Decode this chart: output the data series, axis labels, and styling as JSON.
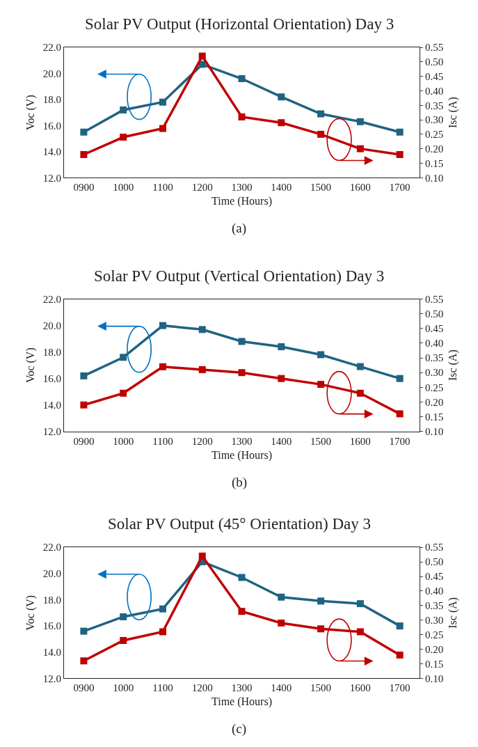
{
  "chart_data": [
    {
      "type": "line",
      "title": "Solar PV Output (Horizontal Orientation) Day 3",
      "xlabel": "Time (Hours)",
      "ylabel": "Voc (V)",
      "y2label": "Isc (A)",
      "annotations": [
        "(a)"
      ],
      "marker": "square",
      "line_style": "solid",
      "categories": [
        "0900",
        "1000",
        "1100",
        "1200",
        "1300",
        "1400",
        "1500",
        "1600",
        "1700"
      ],
      "series": [
        {
          "color": "#1f6382",
          "values": [
            15.5,
            17.2,
            17.8,
            20.7,
            19.6,
            18.2,
            16.9,
            16.3,
            15.5
          ]
        },
        {
          "color": "#c00000",
          "axis": "y2",
          "values": [
            0.18,
            0.24,
            0.27,
            0.52,
            0.31,
            0.29,
            0.25,
            0.2,
            0.18
          ]
        }
      ],
      "ylim": [
        12,
        22
      ],
      "yticks": [
        {
          "value": 12,
          "label": "12.0"
        },
        {
          "value": 14,
          "label": "14.0"
        },
        {
          "value": 16,
          "label": "16.0"
        },
        {
          "value": 18,
          "label": "18.0"
        },
        {
          "value": 20,
          "label": "20.0"
        },
        {
          "value": 22,
          "label": "22.0"
        }
      ],
      "y2lim": [
        0.1,
        0.55
      ],
      "y2ticks": [
        {
          "value": 0.1,
          "label": "0.10"
        },
        {
          "value": 0.15,
          "label": "0.15"
        },
        {
          "value": 0.2,
          "label": "0.20"
        },
        {
          "value": 0.25,
          "label": "0.25"
        },
        {
          "value": 0.3,
          "label": "0.30"
        },
        {
          "value": 0.35,
          "label": "0.35"
        },
        {
          "value": 0.4,
          "label": "0.40"
        },
        {
          "value": 0.45,
          "label": "0.45"
        },
        {
          "value": 0.5,
          "label": "0.50"
        },
        {
          "value": 0.55,
          "label": "0.55"
        }
      ]
    },
    {
      "type": "line",
      "title": "Solar PV Output (Vertical Orientation) Day 3",
      "xlabel": "Time (Hours)",
      "ylabel": "Voc (V)",
      "y2label": "Isc (A)",
      "annotations": [
        "(b)"
      ],
      "marker": "square",
      "line_style": "solid",
      "categories": [
        "0900",
        "1000",
        "1100",
        "1200",
        "1300",
        "1400",
        "1500",
        "1600",
        "1700"
      ],
      "series": [
        {
          "color": "#1f6382",
          "values": [
            16.2,
            17.6,
            20.0,
            19.7,
            18.8,
            18.4,
            17.8,
            16.9,
            16.0
          ]
        },
        {
          "color": "#c00000",
          "axis": "y2",
          "values": [
            0.19,
            0.23,
            0.32,
            0.31,
            0.3,
            0.28,
            0.26,
            0.23,
            0.16
          ]
        }
      ],
      "ylim": [
        12,
        22
      ],
      "yticks": [
        {
          "value": 12,
          "label": "12.0"
        },
        {
          "value": 14,
          "label": "14.0"
        },
        {
          "value": 16,
          "label": "16.0"
        },
        {
          "value": 18,
          "label": "18.0"
        },
        {
          "value": 20,
          "label": "20.0"
        },
        {
          "value": 22,
          "label": "22.0"
        }
      ],
      "y2lim": [
        0.1,
        0.55
      ],
      "y2ticks": [
        {
          "value": 0.1,
          "label": "0.10"
        },
        {
          "value": 0.15,
          "label": "0.15"
        },
        {
          "value": 0.2,
          "label": "0.20"
        },
        {
          "value": 0.25,
          "label": "0.25"
        },
        {
          "value": 0.3,
          "label": "0.30"
        },
        {
          "value": 0.35,
          "label": "0.35"
        },
        {
          "value": 0.4,
          "label": "0.40"
        },
        {
          "value": 0.45,
          "label": "0.45"
        },
        {
          "value": 0.5,
          "label": "0.50"
        },
        {
          "value": 0.55,
          "label": "0.55"
        }
      ]
    },
    {
      "type": "line",
      "title": "Solar PV Output (45° Orientation) Day 3",
      "xlabel": "Time (Hours)",
      "ylabel": "Voc (V)",
      "y2label": "Isc (A)",
      "annotations": [
        "(c)"
      ],
      "marker": "square",
      "line_style": "solid",
      "categories": [
        "0900",
        "1000",
        "1100",
        "1200",
        "1300",
        "1400",
        "1500",
        "1600",
        "1700"
      ],
      "series": [
        {
          "color": "#1f6382",
          "values": [
            15.6,
            16.7,
            17.3,
            20.9,
            19.7,
            18.2,
            17.9,
            17.7,
            16.0
          ]
        },
        {
          "color": "#c00000",
          "axis": "y2",
          "values": [
            0.16,
            0.23,
            0.26,
            0.52,
            0.33,
            0.29,
            0.27,
            0.26,
            0.18
          ]
        }
      ],
      "ylim": [
        12,
        22
      ],
      "yticks": [
        {
          "value": 12,
          "label": "12.0"
        },
        {
          "value": 14,
          "label": "14.0"
        },
        {
          "value": 16,
          "label": "16.0"
        },
        {
          "value": 18,
          "label": "18.0"
        },
        {
          "value": 20,
          "label": "20.0"
        },
        {
          "value": 22,
          "label": "22.0"
        }
      ],
      "y2lim": [
        0.1,
        0.55
      ],
      "y2ticks": [
        {
          "value": 0.1,
          "label": "0.10"
        },
        {
          "value": 0.15,
          "label": "0.15"
        },
        {
          "value": 0.2,
          "label": "0.20"
        },
        {
          "value": 0.25,
          "label": "0.25"
        },
        {
          "value": 0.3,
          "label": "0.30"
        },
        {
          "value": 0.35,
          "label": "0.35"
        },
        {
          "value": 0.4,
          "label": "0.40"
        },
        {
          "value": 0.45,
          "label": "0.45"
        },
        {
          "value": 0.5,
          "label": "0.50"
        },
        {
          "value": 0.55,
          "label": "0.55"
        }
      ]
    }
  ]
}
